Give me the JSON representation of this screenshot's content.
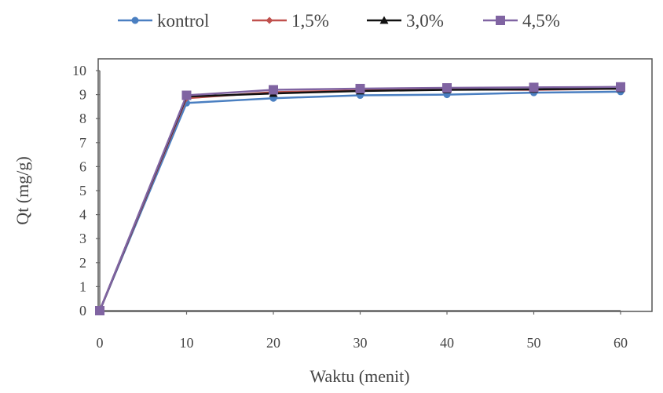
{
  "chart_data": {
    "type": "line",
    "title": "",
    "xlabel": "Waktu (menit)",
    "ylabel": "Qt (mg/g)",
    "x": [
      0,
      10,
      20,
      30,
      40,
      50,
      60
    ],
    "xlim": [
      0,
      60
    ],
    "ylim": [
      0,
      10
    ],
    "xticks": [
      0,
      10,
      20,
      30,
      40,
      50,
      60
    ],
    "yticks": [
      0,
      1,
      2,
      3,
      4,
      5,
      6,
      7,
      8,
      9,
      10
    ],
    "grid": false,
    "legend_position": "top",
    "series": [
      {
        "name": "kontrol",
        "color": "#4a7fc1",
        "marker": "circle",
        "values": [
          0,
          8.65,
          8.85,
          8.97,
          9.0,
          9.08,
          9.12
        ]
      },
      {
        "name": "1,5%",
        "color": "#c0504d",
        "marker": "diamond",
        "values": [
          0,
          8.85,
          9.1,
          9.17,
          9.22,
          9.2,
          9.25
        ]
      },
      {
        "name": "3,0%",
        "color": "#111111",
        "marker": "triangle",
        "values": [
          0,
          8.92,
          9.05,
          9.15,
          9.2,
          9.22,
          9.25
        ]
      },
      {
        "name": "4,5%",
        "color": "#8064a2",
        "marker": "square",
        "values": [
          0,
          8.97,
          9.2,
          9.25,
          9.28,
          9.3,
          9.32
        ]
      }
    ]
  }
}
